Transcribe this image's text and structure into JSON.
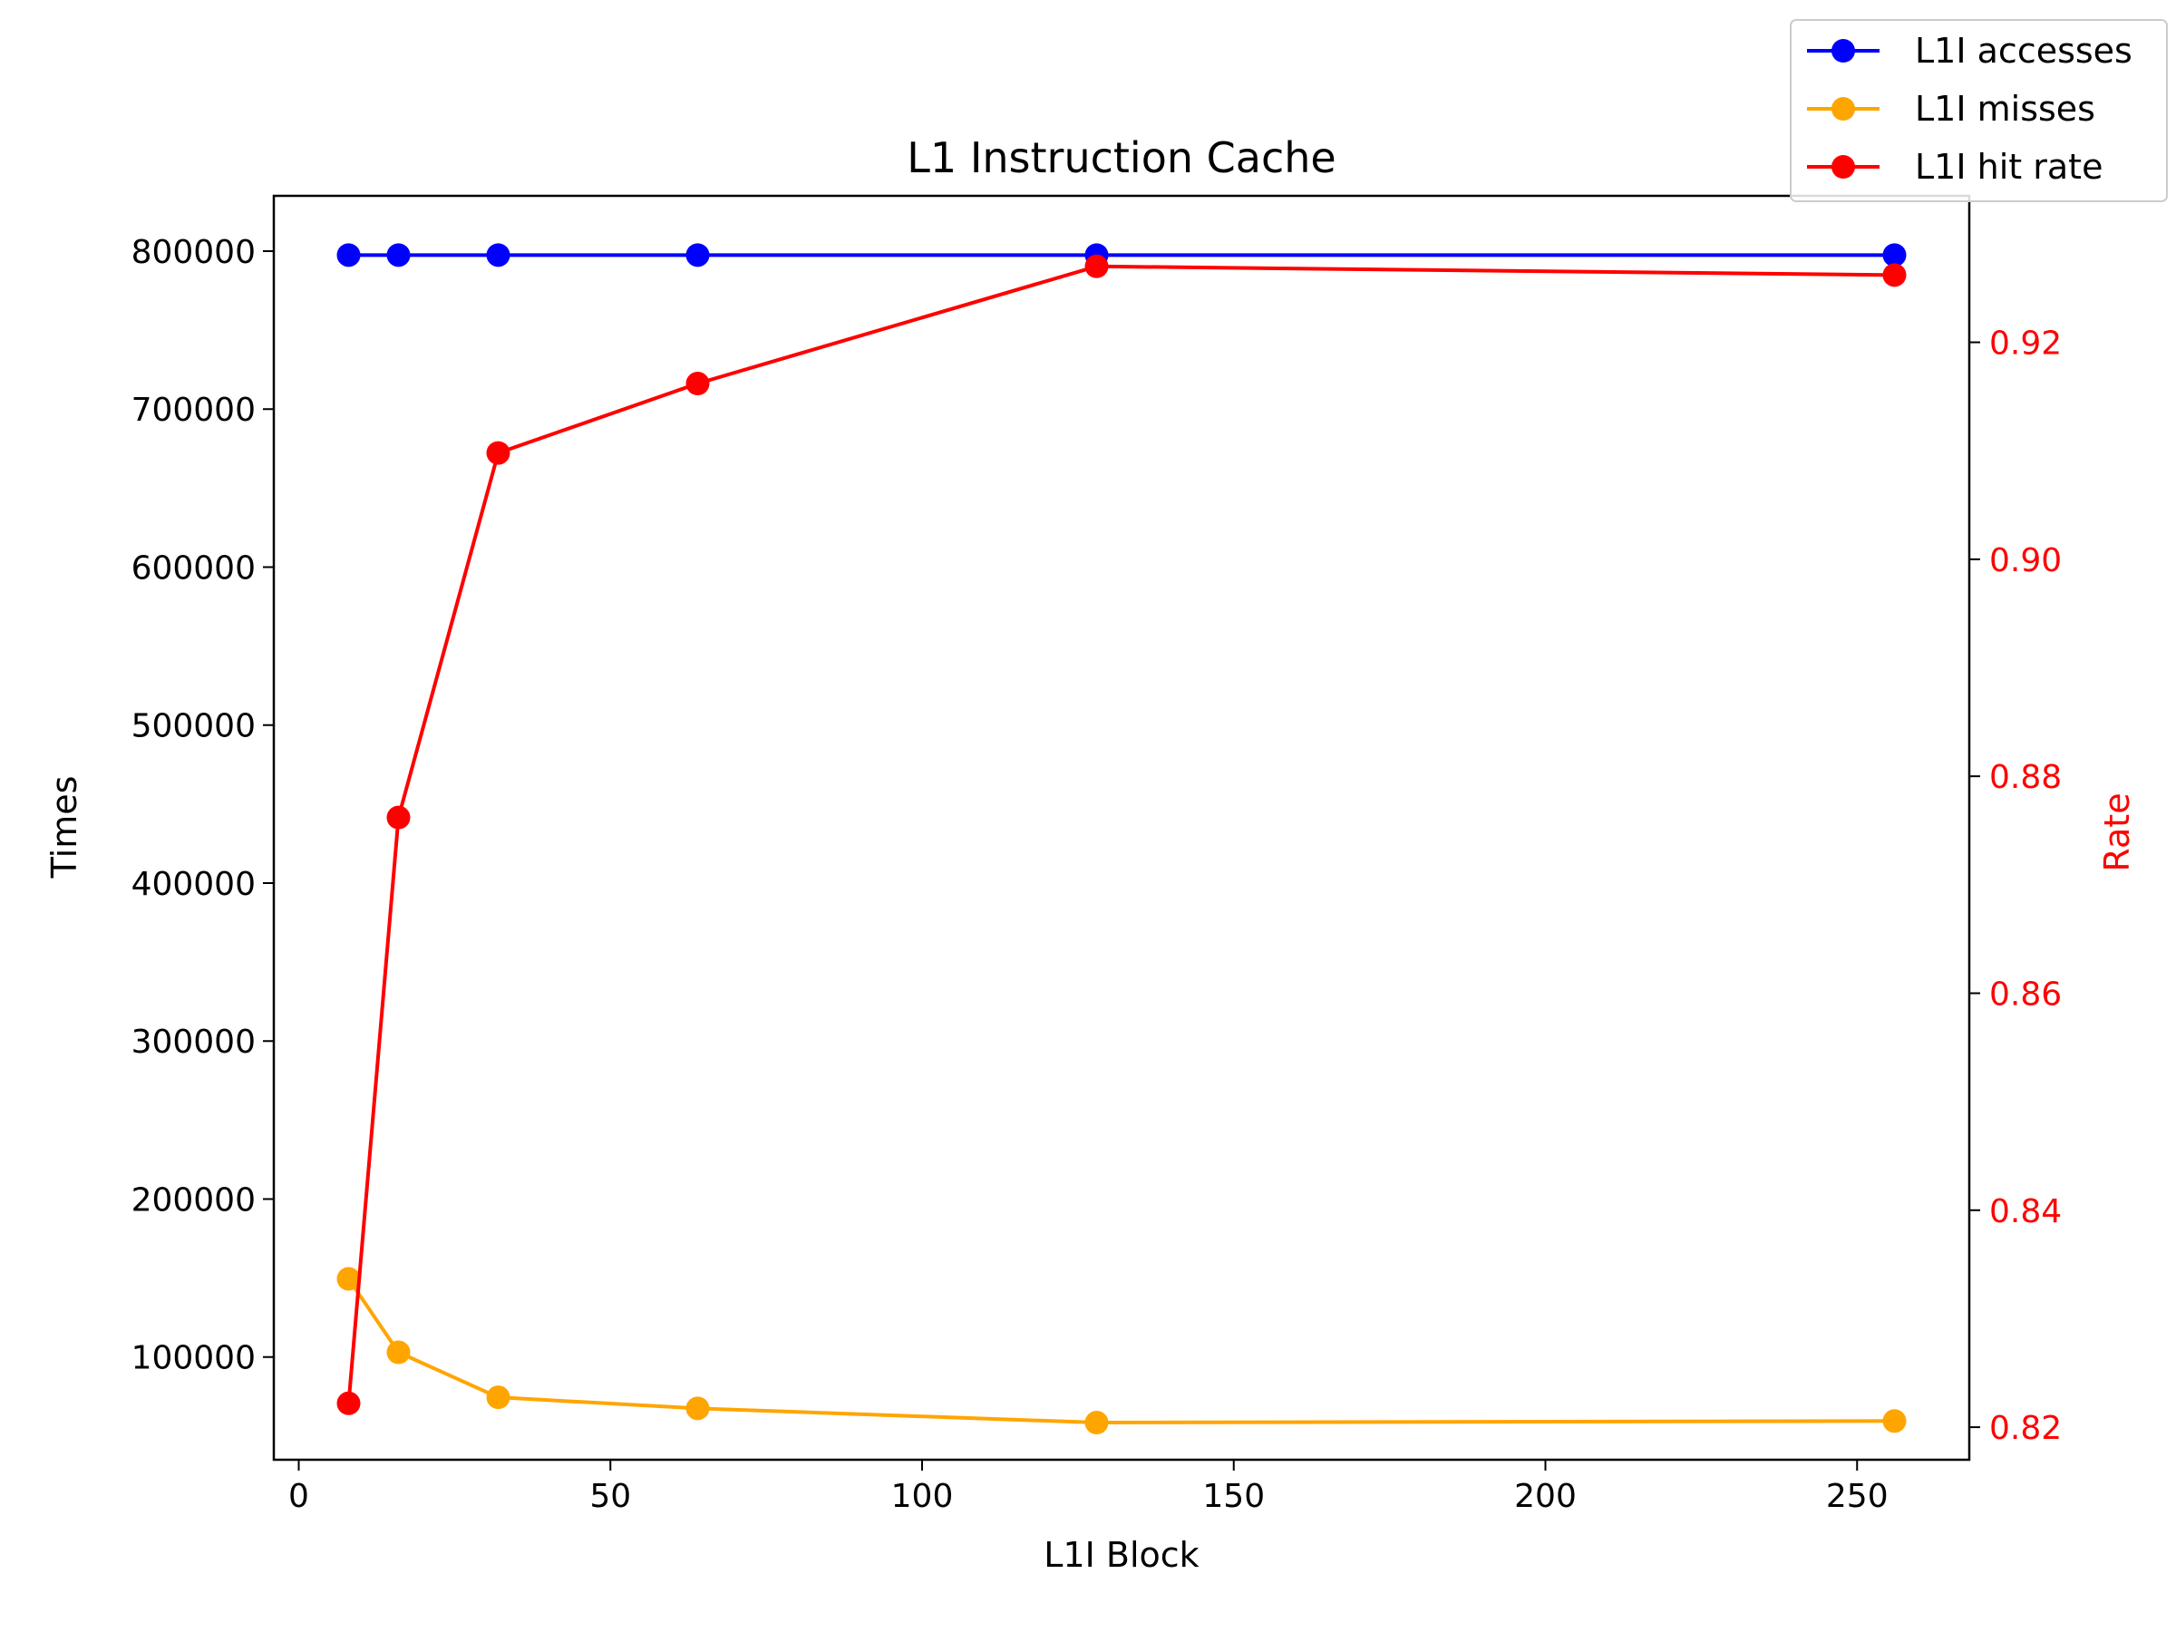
{
  "chart_data": {
    "type": "line",
    "title": "L1 Instruction Cache",
    "xlabel": "L1I Block",
    "ylabel": "Times",
    "y2label": "Rate",
    "xlim": [
      -4,
      268
    ],
    "ylim": [
      35000,
      835000
    ],
    "y2lim": [
      0.817,
      0.9335
    ],
    "x_ticks": [
      0,
      50,
      100,
      150,
      200,
      250
    ],
    "y_ticks": [
      100000,
      200000,
      300000,
      400000,
      500000,
      600000,
      700000,
      800000
    ],
    "y2_ticks": [
      0.82,
      0.84,
      0.86,
      0.88,
      0.9,
      0.92
    ],
    "x": [
      8,
      16,
      32,
      64,
      128,
      256
    ],
    "grid": false,
    "legend_position": "top-right",
    "series": [
      {
        "name": "L1I accesses",
        "axis": "left",
        "color": "#0000ff",
        "values": [
          797500,
          797500,
          797500,
          797500,
          797500,
          797500
        ]
      },
      {
        "name": "L1I misses",
        "axis": "left",
        "color": "#ffa500",
        "values": [
          149500,
          103000,
          74500,
          67500,
          58500,
          59500
        ]
      },
      {
        "name": "L1I hit rate",
        "axis": "right",
        "color": "#ff0000",
        "values": [
          0.8222,
          0.8762,
          0.9098,
          0.9162,
          0.927,
          0.9262
        ]
      }
    ],
    "right_axis_color": "#ff0000"
  }
}
